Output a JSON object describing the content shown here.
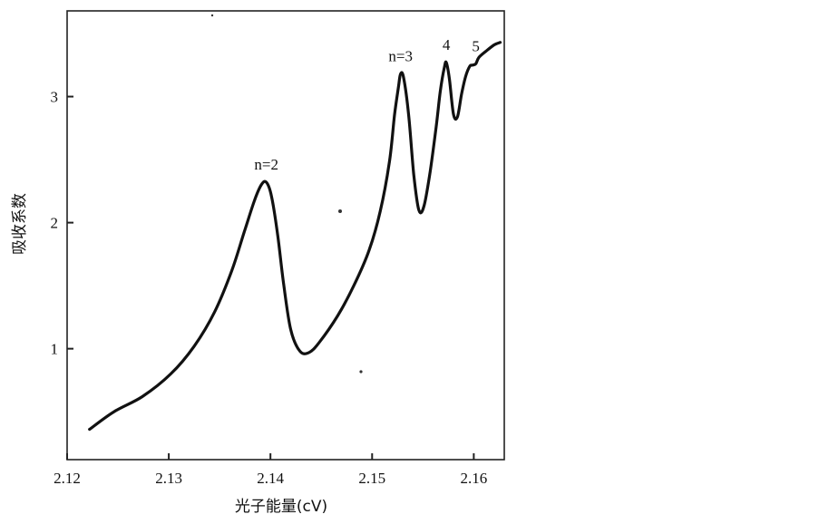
{
  "chart_data": {
    "type": "line",
    "xlabel": "光子能量(cV)",
    "ylabel": "吸收系数",
    "xlim": [
      2.12,
      2.163
    ],
    "ylim": [
      0.12,
      3.68
    ],
    "x_ticks": [
      "2.12",
      "2.13",
      "2.14",
      "2.15",
      "2.16"
    ],
    "y_ticks": [
      "1",
      "2",
      "3"
    ],
    "grid": false,
    "legend": "none",
    "series": [
      {
        "x": [
          2.1222,
          2.1246,
          2.1274,
          2.1302,
          2.1325,
          2.1345,
          2.1362,
          2.1374,
          2.1384,
          2.1391,
          2.1396,
          2.1401,
          2.1407,
          2.1413,
          2.142,
          2.1429,
          2.1438,
          2.1448,
          2.1466,
          2.1482,
          2.1497,
          2.1508,
          2.1517,
          2.1522,
          2.1526,
          2.1528,
          2.1531,
          2.1536,
          2.1541,
          2.1546,
          2.1551,
          2.1557,
          2.1563,
          2.1567,
          2.1571,
          2.1573,
          2.1576,
          2.158,
          2.1584,
          2.1588,
          2.1592,
          2.1596,
          2.1599,
          2.1602,
          2.1605,
          2.1612,
          2.162,
          2.1626
        ],
        "values": [
          0.36,
          0.5,
          0.62,
          0.8,
          1.02,
          1.29,
          1.62,
          1.92,
          2.17,
          2.3,
          2.32,
          2.21,
          1.91,
          1.51,
          1.15,
          0.98,
          0.97,
          1.05,
          1.26,
          1.5,
          1.78,
          2.09,
          2.48,
          2.85,
          3.08,
          3.18,
          3.15,
          2.85,
          2.38,
          2.1,
          2.13,
          2.4,
          2.76,
          3.04,
          3.23,
          3.27,
          3.14,
          2.86,
          2.84,
          3.02,
          3.16,
          3.24,
          3.25,
          3.26,
          3.31,
          3.36,
          3.41,
          3.43
        ]
      }
    ],
    "annotations": [
      {
        "text": "n=2",
        "x": 2.1396,
        "y": 2.32
      },
      {
        "text": "n=3",
        "x": 2.1528,
        "y": 3.18
      },
      {
        "text": "4",
        "x": 2.1573,
        "y": 3.27
      },
      {
        "text": "5",
        "x": 2.1602,
        "y": 3.26
      }
    ]
  }
}
